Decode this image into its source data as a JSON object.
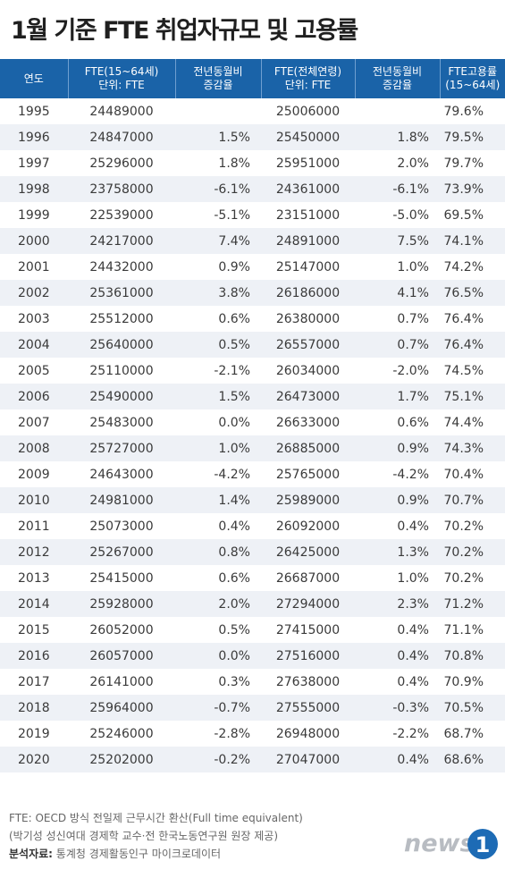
{
  "title": "1월 기준 FTE 취업자규모 및 고용률",
  "columns": [
    {
      "line1": "연도",
      "line2": ""
    },
    {
      "line1": "FTE(15~64세)",
      "line2": "단위: FTE"
    },
    {
      "line1": "전년동월비",
      "line2": "증감율"
    },
    {
      "line1": "FTE(전체연령)",
      "line2": "단위: FTE"
    },
    {
      "line1": "전년동월비",
      "line2": "증감율"
    },
    {
      "line1": "FTE고용률",
      "line2": "(15~64세)"
    }
  ],
  "rows": [
    {
      "year": "1995",
      "fte_1564": "24489000",
      "chg_1564": "",
      "fte_all": "25006000",
      "chg_all": "",
      "emp_rate": "79.6%"
    },
    {
      "year": "1996",
      "fte_1564": "24847000",
      "chg_1564": "1.5%",
      "fte_all": "25450000",
      "chg_all": "1.8%",
      "emp_rate": "79.5%"
    },
    {
      "year": "1997",
      "fte_1564": "25296000",
      "chg_1564": "1.8%",
      "fte_all": "25951000",
      "chg_all": "2.0%",
      "emp_rate": "79.7%"
    },
    {
      "year": "1998",
      "fte_1564": "23758000",
      "chg_1564": "-6.1%",
      "fte_all": "24361000",
      "chg_all": "-6.1%",
      "emp_rate": "73.9%"
    },
    {
      "year": "1999",
      "fte_1564": "22539000",
      "chg_1564": "-5.1%",
      "fte_all": "23151000",
      "chg_all": "-5.0%",
      "emp_rate": "69.5%"
    },
    {
      "year": "2000",
      "fte_1564": "24217000",
      "chg_1564": "7.4%",
      "fte_all": "24891000",
      "chg_all": "7.5%",
      "emp_rate": "74.1%"
    },
    {
      "year": "2001",
      "fte_1564": "24432000",
      "chg_1564": "0.9%",
      "fte_all": "25147000",
      "chg_all": "1.0%",
      "emp_rate": "74.2%"
    },
    {
      "year": "2002",
      "fte_1564": "25361000",
      "chg_1564": "3.8%",
      "fte_all": "26186000",
      "chg_all": "4.1%",
      "emp_rate": "76.5%"
    },
    {
      "year": "2003",
      "fte_1564": "25512000",
      "chg_1564": "0.6%",
      "fte_all": "26380000",
      "chg_all": "0.7%",
      "emp_rate": "76.4%"
    },
    {
      "year": "2004",
      "fte_1564": "25640000",
      "chg_1564": "0.5%",
      "fte_all": "26557000",
      "chg_all": "0.7%",
      "emp_rate": "76.4%"
    },
    {
      "year": "2005",
      "fte_1564": "25110000",
      "chg_1564": "-2.1%",
      "fte_all": "26034000",
      "chg_all": "-2.0%",
      "emp_rate": "74.5%"
    },
    {
      "year": "2006",
      "fte_1564": "25490000",
      "chg_1564": "1.5%",
      "fte_all": "26473000",
      "chg_all": "1.7%",
      "emp_rate": "75.1%"
    },
    {
      "year": "2007",
      "fte_1564": "25483000",
      "chg_1564": "0.0%",
      "fte_all": "26633000",
      "chg_all": "0.6%",
      "emp_rate": "74.4%"
    },
    {
      "year": "2008",
      "fte_1564": "25727000",
      "chg_1564": "1.0%",
      "fte_all": "26885000",
      "chg_all": "0.9%",
      "emp_rate": "74.3%"
    },
    {
      "year": "2009",
      "fte_1564": "24643000",
      "chg_1564": "-4.2%",
      "fte_all": "25765000",
      "chg_all": "-4.2%",
      "emp_rate": "70.4%"
    },
    {
      "year": "2010",
      "fte_1564": "24981000",
      "chg_1564": "1.4%",
      "fte_all": "25989000",
      "chg_all": "0.9%",
      "emp_rate": "70.7%"
    },
    {
      "year": "2011",
      "fte_1564": "25073000",
      "chg_1564": "0.4%",
      "fte_all": "26092000",
      "chg_all": "0.4%",
      "emp_rate": "70.2%"
    },
    {
      "year": "2012",
      "fte_1564": "25267000",
      "chg_1564": "0.8%",
      "fte_all": "26425000",
      "chg_all": "1.3%",
      "emp_rate": "70.2%"
    },
    {
      "year": "2013",
      "fte_1564": "25415000",
      "chg_1564": "0.6%",
      "fte_all": "26687000",
      "chg_all": "1.0%",
      "emp_rate": "70.2%"
    },
    {
      "year": "2014",
      "fte_1564": "25928000",
      "chg_1564": "2.0%",
      "fte_all": "27294000",
      "chg_all": "2.3%",
      "emp_rate": "71.2%"
    },
    {
      "year": "2015",
      "fte_1564": "26052000",
      "chg_1564": "0.5%",
      "fte_all": "27415000",
      "chg_all": "0.4%",
      "emp_rate": "71.1%"
    },
    {
      "year": "2016",
      "fte_1564": "26057000",
      "chg_1564": "0.0%",
      "fte_all": "27516000",
      "chg_all": "0.4%",
      "emp_rate": "70.8%"
    },
    {
      "year": "2017",
      "fte_1564": "26141000",
      "chg_1564": "0.3%",
      "fte_all": "27638000",
      "chg_all": "0.4%",
      "emp_rate": "70.9%"
    },
    {
      "year": "2018",
      "fte_1564": "25964000",
      "chg_1564": "-0.7%",
      "fte_all": "27555000",
      "chg_all": "-0.3%",
      "emp_rate": "70.5%"
    },
    {
      "year": "2019",
      "fte_1564": "25246000",
      "chg_1564": "-2.8%",
      "fte_all": "26948000",
      "chg_all": "-2.2%",
      "emp_rate": "68.7%"
    },
    {
      "year": "2020",
      "fte_1564": "25202000",
      "chg_1564": "-0.2%",
      "fte_all": "27047000",
      "chg_all": "0.4%",
      "emp_rate": "68.6%"
    }
  ],
  "footnote": {
    "line1": "FTE: OECD 방식 전일제 근무시간 환산(Full time equivalent)",
    "line2": "(박기성 성신여대 경제학 교수·전 한국노동연구원 원장 제공)",
    "source_label": "분석자료:",
    "source_text": " 통계청 경제활동인구 마이크로데이터"
  },
  "logo": {
    "text": "news",
    "mark": "1"
  },
  "colors": {
    "header_bg": "#1a63a8",
    "stripe": "#eef1f6",
    "logo_gray": "#b8bcc2",
    "logo_blue": "#1d6bb5"
  },
  "chart_data": {
    "type": "table",
    "title": "1월 기준 FTE 취업자규모 및 고용률",
    "columns": [
      "연도",
      "FTE(15~64세) 단위: FTE",
      "전년동월비 증감율",
      "FTE(전체연령) 단위: FTE",
      "전년동월비 증감율",
      "FTE고용률 (15~64세)"
    ],
    "x": [
      1995,
      1996,
      1997,
      1998,
      1999,
      2000,
      2001,
      2002,
      2003,
      2004,
      2005,
      2006,
      2007,
      2008,
      2009,
      2010,
      2011,
      2012,
      2013,
      2014,
      2015,
      2016,
      2017,
      2018,
      2019,
      2020
    ],
    "series": [
      {
        "name": "FTE(15~64세)",
        "values": [
          24489000,
          24847000,
          25296000,
          23758000,
          22539000,
          24217000,
          24432000,
          25361000,
          25512000,
          25640000,
          25110000,
          25490000,
          25483000,
          25727000,
          24643000,
          24981000,
          25073000,
          25267000,
          25415000,
          25928000,
          26052000,
          26057000,
          26141000,
          25964000,
          25246000,
          25202000
        ]
      },
      {
        "name": "전년동월비 증감율",
        "values": [
          null,
          1.5,
          1.8,
          -6.1,
          -5.1,
          7.4,
          0.9,
          3.8,
          0.6,
          0.5,
          -2.1,
          1.5,
          0.0,
          1.0,
          -4.2,
          1.4,
          0.4,
          0.8,
          0.6,
          2.0,
          0.5,
          0.0,
          0.3,
          -0.7,
          -2.8,
          -0.2
        ]
      },
      {
        "name": "FTE(전체연령)",
        "values": [
          25006000,
          25450000,
          25951000,
          24361000,
          23151000,
          24891000,
          25147000,
          26186000,
          26380000,
          26557000,
          26034000,
          26473000,
          26633000,
          26885000,
          25765000,
          25989000,
          26092000,
          26425000,
          26687000,
          27294000,
          27415000,
          27516000,
          27638000,
          27555000,
          26948000,
          27047000
        ]
      },
      {
        "name": "전년동월비 증감율",
        "values": [
          null,
          1.8,
          2.0,
          -6.1,
          -5.0,
          7.5,
          1.0,
          4.1,
          0.7,
          0.7,
          -2.0,
          1.7,
          0.6,
          0.9,
          -4.2,
          0.9,
          0.4,
          1.3,
          1.0,
          2.3,
          0.4,
          0.4,
          0.4,
          -0.3,
          -2.2,
          0.4
        ]
      },
      {
        "name": "FTE고용률",
        "values": [
          79.6,
          79.5,
          79.7,
          73.9,
          69.5,
          74.1,
          74.2,
          76.5,
          76.4,
          76.4,
          74.5,
          75.1,
          74.4,
          74.3,
          70.4,
          70.7,
          70.2,
          70.2,
          70.2,
          71.2,
          71.1,
          70.8,
          70.9,
          70.5,
          68.7,
          68.6
        ]
      }
    ]
  }
}
